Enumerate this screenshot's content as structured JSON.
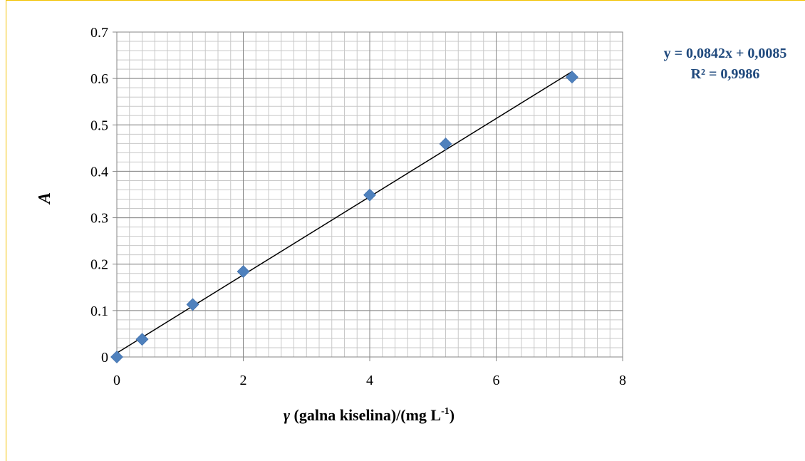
{
  "chart_data": {
    "type": "scatter",
    "title": "",
    "xlabel": {
      "symbol": "γ",
      "text": " (galna kiselina)/(mg L",
      "superscript": "-1",
      "closing": ")"
    },
    "ylabel": "A",
    "xlim": [
      0,
      8
    ],
    "ylim": [
      0,
      0.7
    ],
    "x_ticks": [
      "0",
      "2",
      "4",
      "6",
      "8"
    ],
    "y_ticks": [
      "0",
      "0.1",
      "0.2",
      "0.3",
      "0.4",
      "0.5",
      "0.6",
      "0.7"
    ],
    "x_tick_values": [
      0,
      2,
      4,
      6,
      8
    ],
    "y_tick_values": [
      0,
      0.1,
      0.2,
      0.3,
      0.4,
      0.5,
      0.6,
      0.7
    ],
    "grid": true,
    "minor_grid": true,
    "series": [
      {
        "marker": "diamond",
        "color": "#4f81bd",
        "points": [
          {
            "x": 0,
            "y": 0.0
          },
          {
            "x": 0.4,
            "y": 0.038
          },
          {
            "x": 1.2,
            "y": 0.113
          },
          {
            "x": 2.0,
            "y": 0.184
          },
          {
            "x": 4.0,
            "y": 0.349
          },
          {
            "x": 5.2,
            "y": 0.459
          },
          {
            "x": 7.2,
            "y": 0.603
          }
        ]
      }
    ],
    "trendline": {
      "type": "linear",
      "slope": 0.0842,
      "intercept": 0.0085,
      "x_range": [
        0,
        7.2
      ],
      "color": "#000000"
    },
    "annotations": {
      "equation": "y = 0,0842x + 0,0085",
      "r_squared": "R² = 0,9986",
      "color": "#1f497d"
    }
  }
}
